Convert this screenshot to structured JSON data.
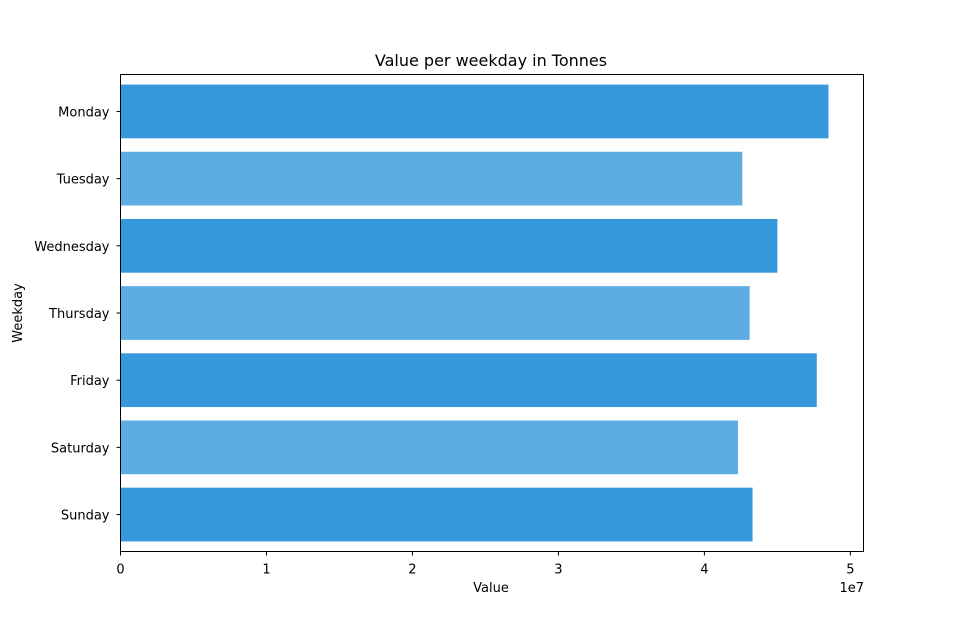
{
  "chart_data": {
    "type": "bar",
    "orientation": "horizontal",
    "title": "Value per weekday in Tonnes",
    "xlabel": "Value",
    "ylabel": "Weekday",
    "x_exponent_label": "1e7",
    "xlim": [
      0,
      50900000
    ],
    "xticks": [
      0,
      1,
      2,
      3,
      4,
      5
    ],
    "grid": false,
    "categories": [
      "Monday",
      "Tuesday",
      "Wednesday",
      "Thursday",
      "Friday",
      "Saturday",
      "Sunday"
    ],
    "values": [
      48500000,
      42600000,
      45000000,
      43100000,
      47700000,
      42300000,
      43300000
    ],
    "colors": [
      "#3799db",
      "#5dade3",
      "#3799db",
      "#5dade3",
      "#3799db",
      "#5dade3",
      "#3799db"
    ]
  }
}
